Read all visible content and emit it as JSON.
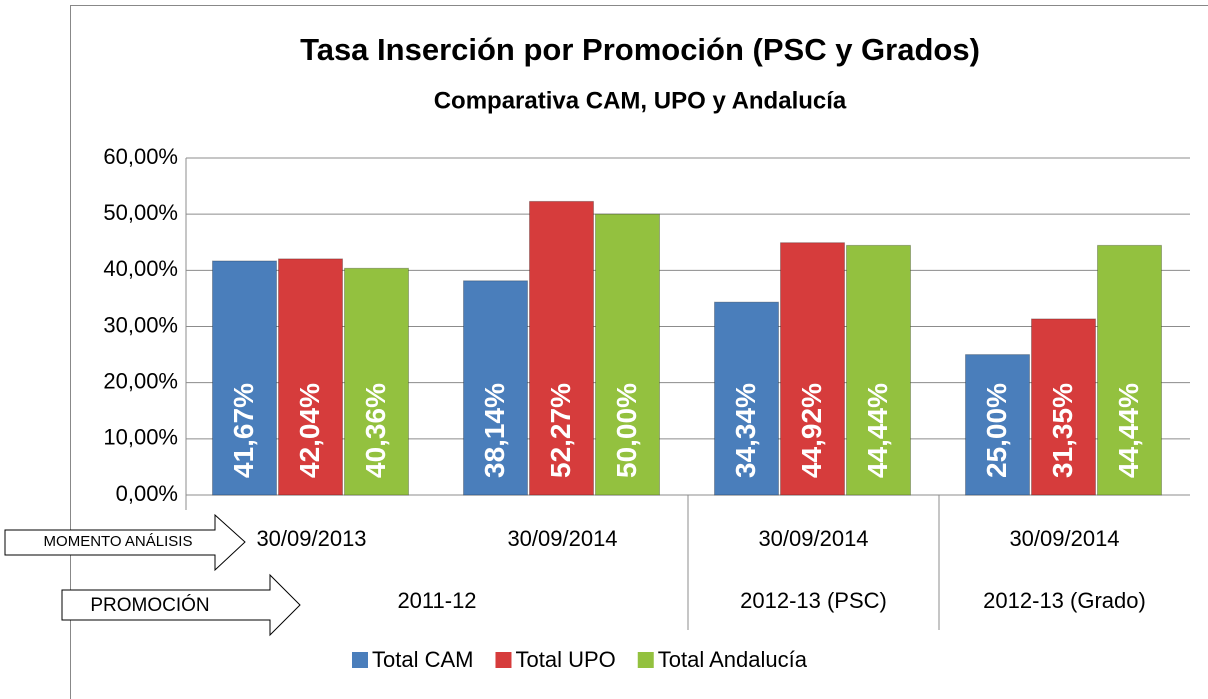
{
  "chart_data": {
    "type": "bar",
    "title": "Tasa Inserción por Promoción (PSC y Grados)",
    "subtitle": "Comparativa CAM, UPO y Andalucía",
    "categories": [
      "30/09/2013",
      "30/09/2014",
      "30/09/2014",
      "30/09/2014"
    ],
    "promotions": [
      "2011-12",
      "2011-12",
      "2012-13 (PSC)",
      "2012-13 (Grado)"
    ],
    "annotations": [
      "MOMENTO ANÁLISIS",
      "PROMOCIÓN"
    ],
    "series": [
      {
        "name": "Total CAM",
        "color": "#4a7ebb",
        "values": [
          41.67,
          38.14,
          34.34,
          25.0
        ],
        "value_labels": [
          "41,67%",
          "38,14%",
          "34,34%",
          "25,00%"
        ]
      },
      {
        "name": "Total UPO",
        "color": "#d63c3c",
        "values": [
          42.04,
          52.27,
          44.92,
          31.35
        ],
        "value_labels": [
          "42,04%",
          "52,27%",
          "44,92%",
          "31,35%"
        ]
      },
      {
        "name": "Total Andalucía",
        "color": "#93c13f",
        "values": [
          40.36,
          50.0,
          44.44,
          44.44
        ],
        "value_labels": [
          "40,36%",
          "50,00%",
          "44,44%",
          "44,44%"
        ]
      }
    ],
    "ylim": [
      0,
      60
    ],
    "yticks": [
      {
        "value": 0,
        "label": "0,00%"
      },
      {
        "value": 10,
        "label": "10,00%"
      },
      {
        "value": 20,
        "label": "20,00%"
      },
      {
        "value": 30,
        "label": "30,00%"
      },
      {
        "value": 40,
        "label": "40,00%"
      },
      {
        "value": 50,
        "label": "50,00%"
      },
      {
        "value": 60,
        "label": "60,00%"
      }
    ],
    "grid": true,
    "legend": "bottom"
  }
}
